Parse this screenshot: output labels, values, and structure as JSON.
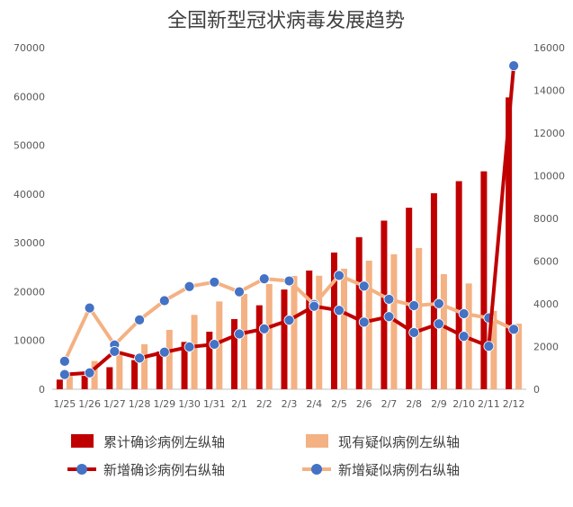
{
  "chart_data": {
    "type": "bar",
    "title": "全国新型冠状病毒发展趋势",
    "categories": [
      "1/25",
      "1/26",
      "1/27",
      "1/28",
      "1/29",
      "1/30",
      "1/31",
      "2/1",
      "2/2",
      "2/3",
      "2/4",
      "2/5",
      "2/6",
      "2/7",
      "2/8",
      "2/9",
      "2/10",
      "2/11",
      "2/12"
    ],
    "left_axis": {
      "min": 0,
      "max": 70000,
      "ticks": [
        "0",
        "10000",
        "20000",
        "30000",
        "40000",
        "50000",
        "60000",
        "70000"
      ]
    },
    "right_axis": {
      "min": 0,
      "max": 16000,
      "ticks": [
        "0",
        "2000",
        "4000",
        "6000",
        "8000",
        "10000",
        "12000",
        "14000",
        "16000"
      ]
    },
    "grid": false,
    "legend_position": "bottom",
    "series": [
      {
        "name": "累计确诊病例左纵轴",
        "kind": "bar",
        "axis": "left",
        "color": "#c00000",
        "values": [
          1975,
          2744,
          4515,
          5974,
          7711,
          9692,
          11791,
          14380,
          17205,
          20438,
          24324,
          28018,
          31161,
          34546,
          37198,
          40171,
          42638,
          44653,
          59804
        ]
      },
      {
        "name": "现有疑似病例左纵轴",
        "kind": "bar",
        "axis": "left",
        "color": "#f4b183",
        "values": [
          2684,
          5794,
          6973,
          9239,
          12167,
          15238,
          17988,
          19544,
          21558,
          23214,
          23260,
          24702,
          26359,
          27657,
          28942,
          23589,
          21675,
          16067,
          13435
        ]
      },
      {
        "name": "新增确诊病例右纵轴",
        "kind": "line",
        "axis": "right",
        "color": "#c00000",
        "marker_color": "#4472c4",
        "values": [
          688,
          769,
          1771,
          1459,
          1737,
          1982,
          2102,
          2590,
          2829,
          3235,
          3887,
          3694,
          3143,
          3399,
          2656,
          3062,
          2478,
          2015,
          15152
        ]
      },
      {
        "name": "新增疑似病例右纵轴",
        "kind": "line",
        "axis": "right",
        "color": "#f4b183",
        "marker_color": "#4472c4",
        "values": [
          1309,
          3806,
          2077,
          3248,
          4148,
          4812,
          5019,
          4562,
          5173,
          5072,
          3971,
          5328,
          4833,
          4214,
          3916,
          4008,
          3536,
          3342,
          2807
        ]
      }
    ]
  }
}
